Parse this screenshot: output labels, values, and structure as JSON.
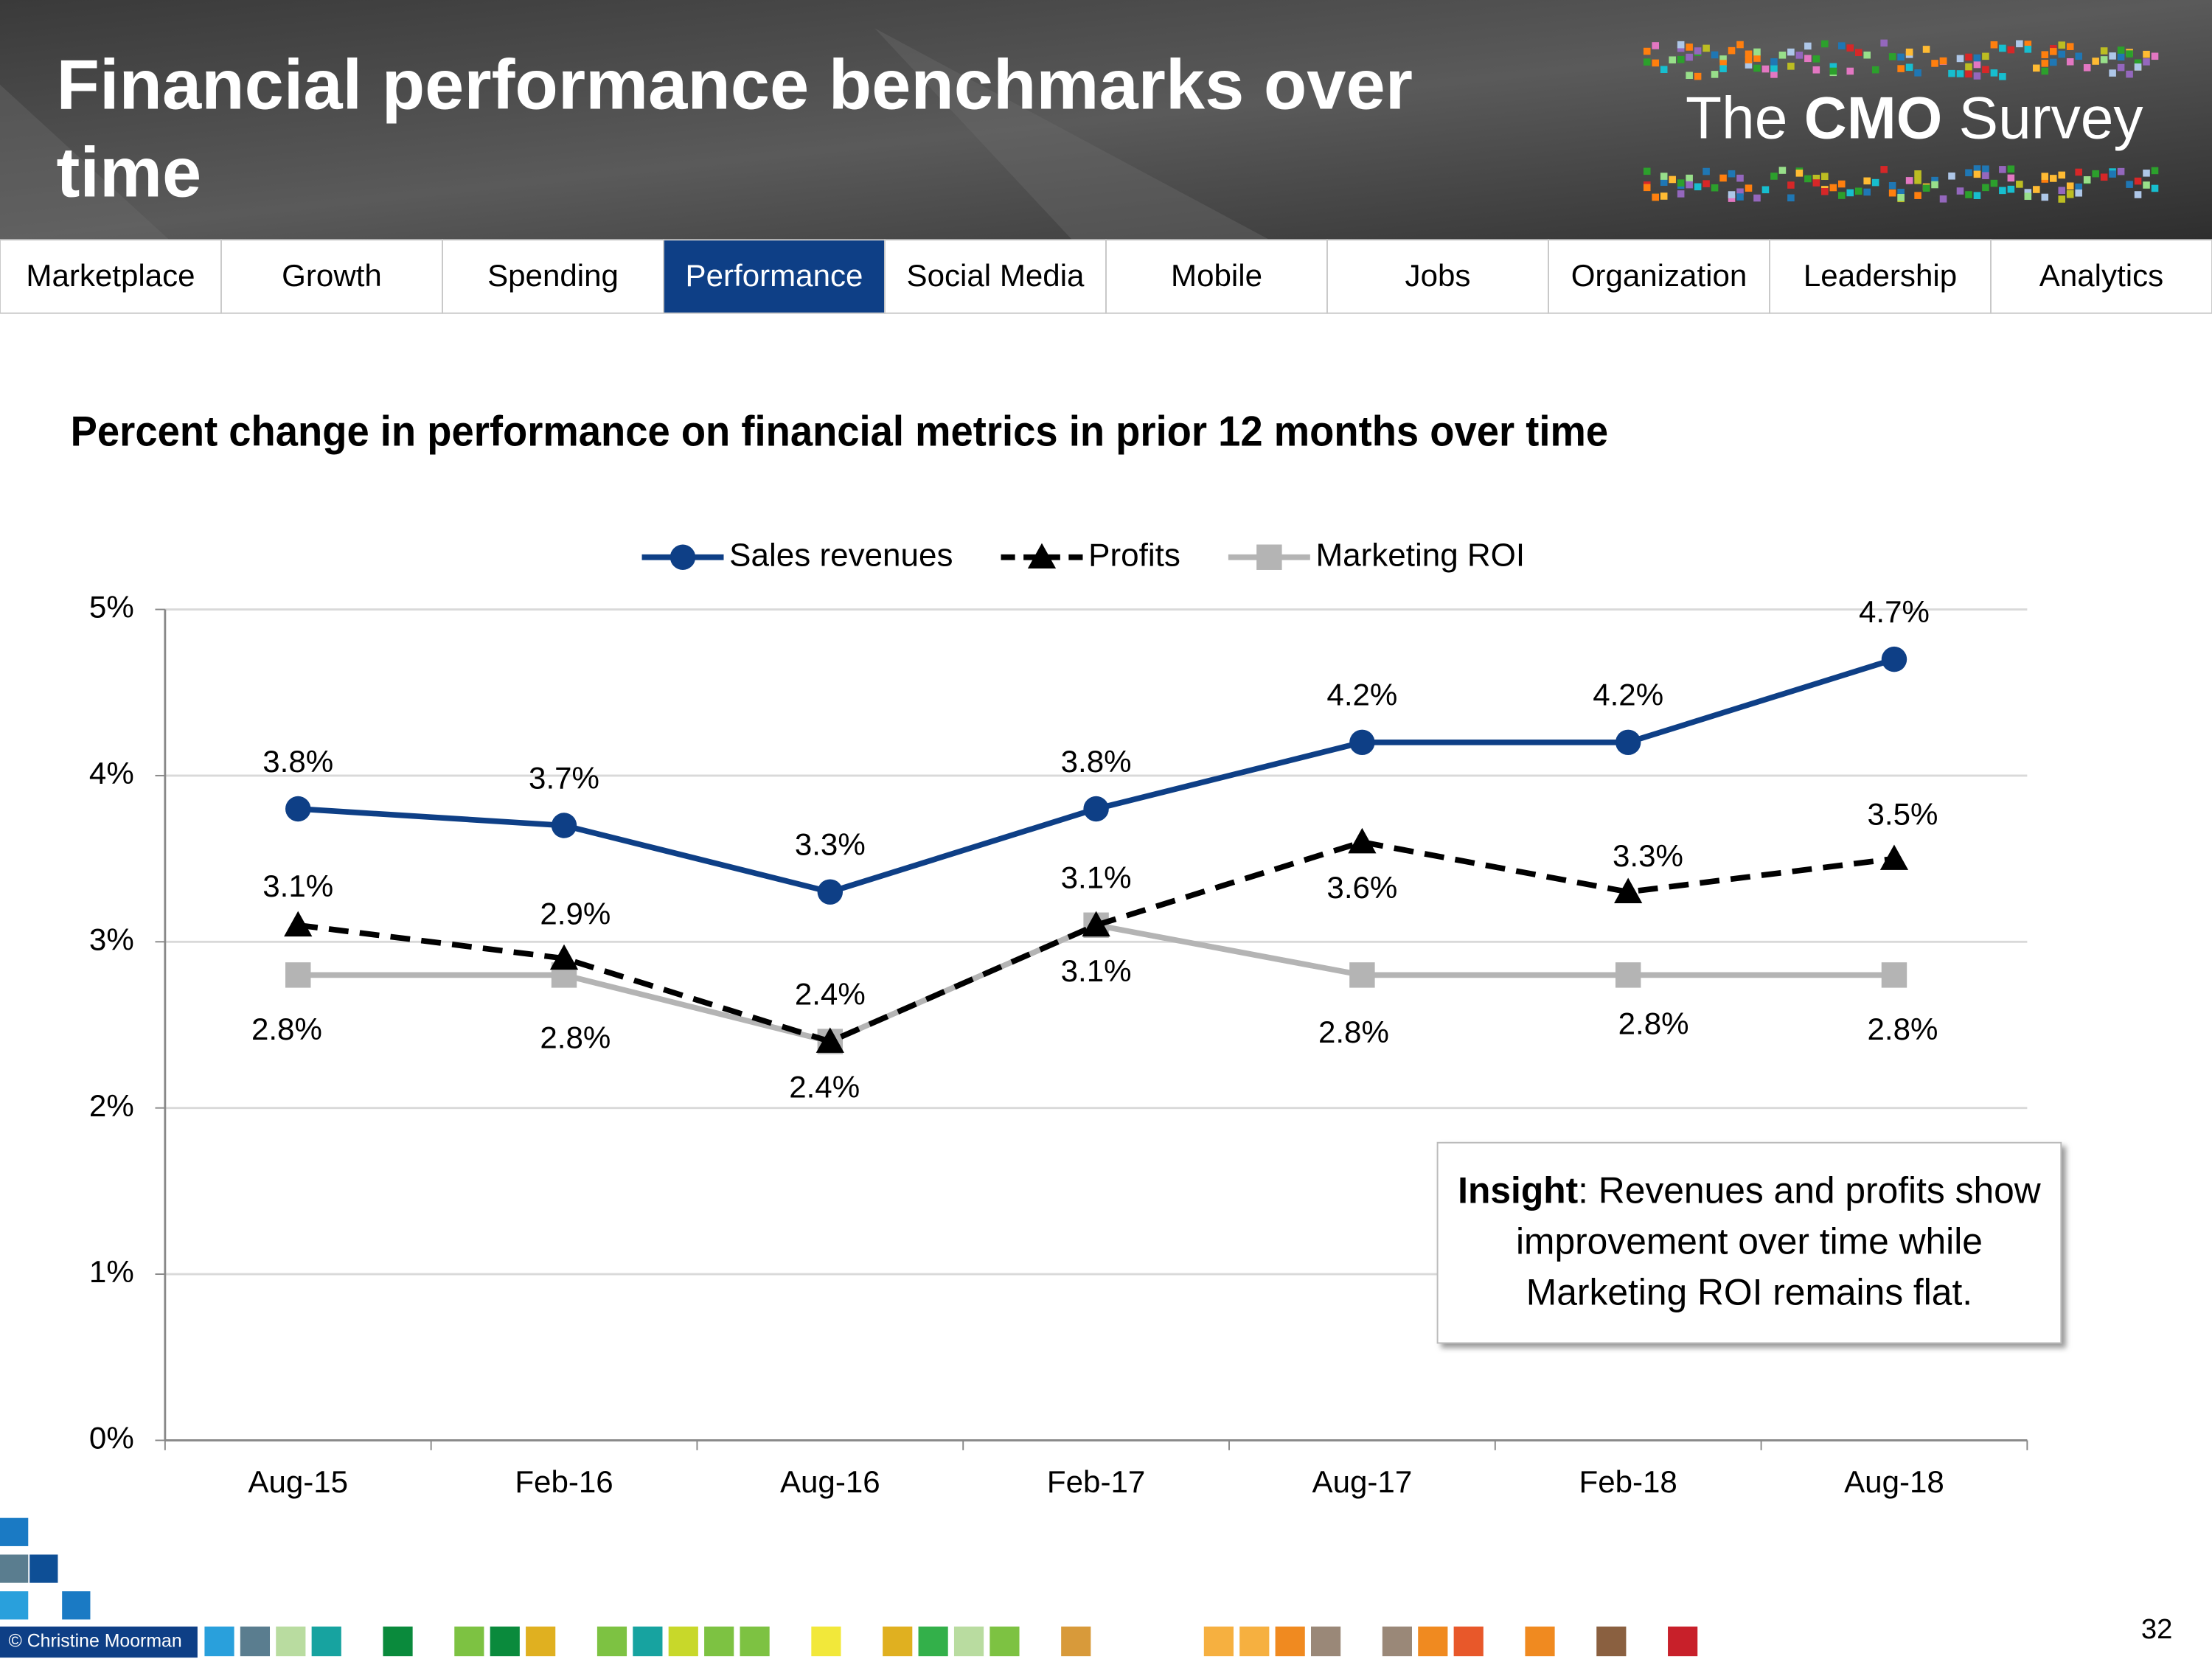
{
  "header": {
    "title_lines": [
      "Financial performance benchmarks over",
      "time"
    ],
    "logo": [
      "The",
      "CMO",
      "Survey"
    ]
  },
  "nav": {
    "tabs": [
      "Marketplace",
      "Growth",
      "Spending",
      "Performance",
      "Social Media",
      "Mobile",
      "Jobs",
      "Organization",
      "Leadership",
      "Analytics"
    ],
    "active": 3
  },
  "chart_data": {
    "type": "line",
    "title": "Percent change in performance on financial metrics in prior 12 months over time",
    "categories": [
      "Aug-15",
      "Feb-16",
      "Aug-16",
      "Feb-17",
      "Aug-17",
      "Feb-18",
      "Aug-18"
    ],
    "series": [
      {
        "name": "Sales revenues",
        "color": "#0e3f86",
        "dash": false,
        "marker": "circle",
        "values": [
          3.8,
          3.7,
          3.3,
          3.8,
          4.2,
          4.2,
          4.7
        ],
        "value_labels": [
          "3.8%",
          "3.7%",
          "3.3%",
          "3.8%",
          "4.2%",
          "4.2%",
          "4.7%"
        ]
      },
      {
        "name": "Profits",
        "color": "#000000",
        "dash": true,
        "marker": "triangle",
        "values": [
          3.1,
          2.9,
          2.4,
          3.1,
          3.6,
          3.3,
          3.5
        ],
        "value_labels": [
          "3.1%",
          "2.9%",
          "2.4%",
          "3.1%",
          "3.6%",
          "3.3%",
          "3.5%"
        ]
      },
      {
        "name": "Marketing ROI",
        "color": "#b4b4b4",
        "dash": false,
        "marker": "square",
        "values": [
          2.8,
          2.8,
          2.4,
          3.1,
          2.8,
          2.8,
          2.8
        ],
        "value_labels": [
          "2.8%",
          "2.8%",
          "2.4%",
          "3.1%",
          "2.8%",
          "2.8%",
          "2.8%"
        ]
      }
    ],
    "ylim": [
      0,
      5
    ],
    "yticks": [
      {
        "value": 0,
        "label": "0%"
      },
      {
        "value": 1,
        "label": "1%"
      },
      {
        "value": 2,
        "label": "2%"
      },
      {
        "value": 3,
        "label": "3%"
      },
      {
        "value": 4,
        "label": "4%"
      },
      {
        "value": 5,
        "label": "5%"
      }
    ],
    "grid": true,
    "legend": "top",
    "annotation": {
      "bold": "Insight",
      "lines": [
        ": Revenues and profits show",
        "improvement over time while",
        "Marketing ROI remains flat."
      ]
    }
  },
  "footer": {
    "copyright": "© Christine Moorman",
    "page": "32"
  }
}
